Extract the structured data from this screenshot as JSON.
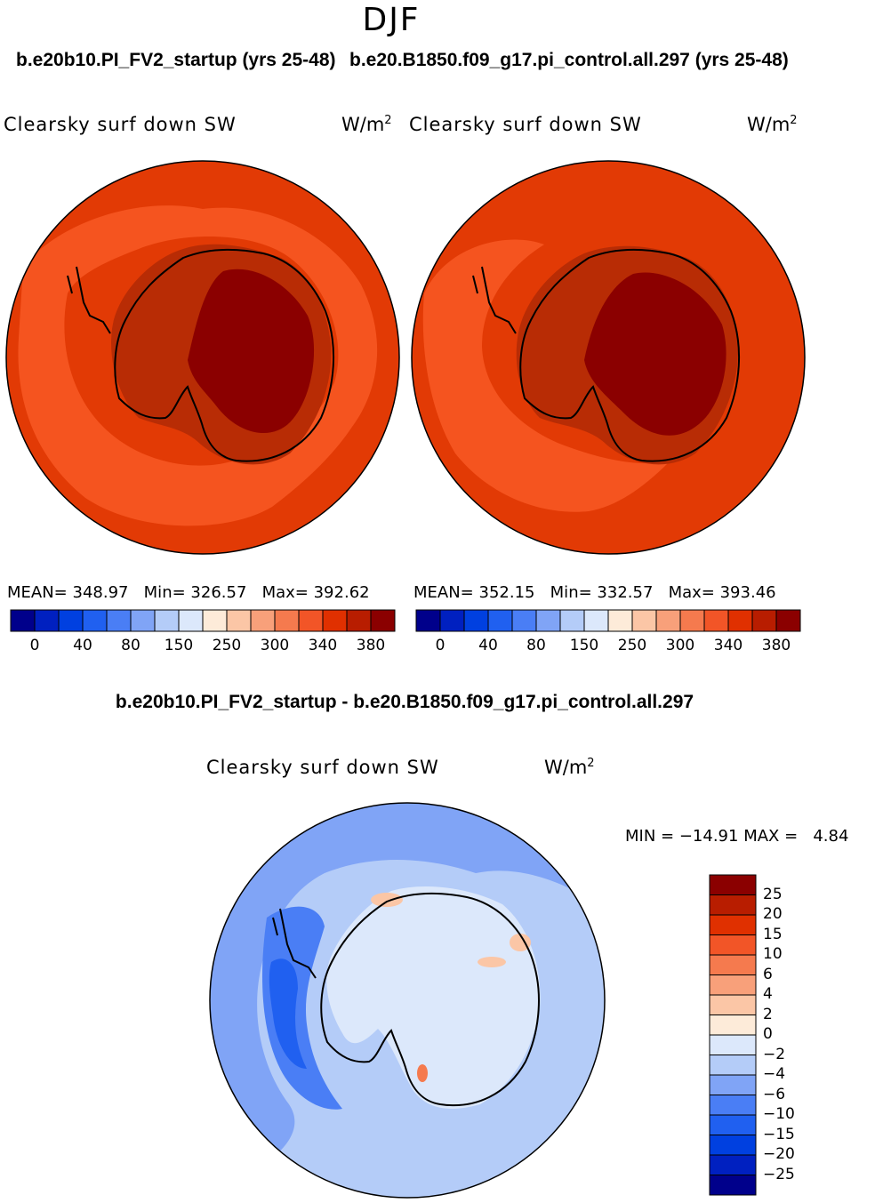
{
  "season": "DJF",
  "panels": [
    {
      "case_title": "b.e20b10.PI_FV2_startup (yrs 25-48)",
      "variable": "Clearsky surf down SW",
      "units": "W/m",
      "units_exp": "2",
      "mean_label": "MEAN=",
      "mean": "348.97",
      "min_label": "Min=",
      "min": "326.57",
      "max_label": "Max=",
      "max": "392.62"
    },
    {
      "case_title": "b.e20.B1850.f09_g17.pi_control.all.297 (yrs 25-48)",
      "variable": "Clearsky surf down SW",
      "units": "W/m",
      "units_exp": "2",
      "mean_label": "MEAN=",
      "mean": "352.15",
      "min_label": "Min=",
      "min": "332.57",
      "max_label": "Max=",
      "max": "393.46"
    }
  ],
  "top_colorbar": {
    "colors": [
      "#00008b",
      "#0020c0",
      "#0040e0",
      "#2060f0",
      "#4a7ef5",
      "#80a4f6",
      "#b4ccf8",
      "#dce8fb",
      "#fdebd9",
      "#fbc6a6",
      "#f8a07a",
      "#f57a4e",
      "#f25527",
      "#e03000",
      "#b81d00",
      "#8b0000"
    ],
    "tick_labels": [
      "0",
      "40",
      "80",
      "150",
      "250",
      "300",
      "340",
      "380"
    ]
  },
  "diff_panel": {
    "title": "b.e20b10.PI_FV2_startup - b.e20.B1850.f09_g17.pi_control.all.297",
    "variable": "Clearsky surf down SW",
    "units": "W/m",
    "units_exp": "2",
    "min_label": "MIN =",
    "min": "−14.91",
    "max_label": "MAX =",
    "max": "4.84"
  },
  "diff_colorbar": {
    "colors": [
      "#8b0000",
      "#b81d00",
      "#e03000",
      "#f25527",
      "#f57a4e",
      "#f8a07a",
      "#fbc6a6",
      "#fdebd9",
      "#dce8fb",
      "#b4ccf8",
      "#80a4f6",
      "#4a7ef5",
      "#2060f0",
      "#0040e0",
      "#0020c0",
      "#00008b"
    ],
    "tick_labels": [
      "25",
      "20",
      "15",
      "10",
      "6",
      "4",
      "2",
      "0",
      "−2",
      "−4",
      "−6",
      "−10",
      "−15",
      "−20",
      "−25"
    ]
  },
  "map_colors": {
    "ocean_a": "#e23a05",
    "ocean_b": "#f5541f",
    "coast_band": "#b82c05",
    "interior": "#8b0000",
    "diff_base": "#b4ccf8",
    "diff_mid": "#80a4f6",
    "diff_dark": "#4a7ef5",
    "diff_darker": "#2060f0",
    "diff_light": "#dce8fb",
    "diff_warm": "#fbc6a6",
    "diff_hot": "#f57a4e"
  }
}
